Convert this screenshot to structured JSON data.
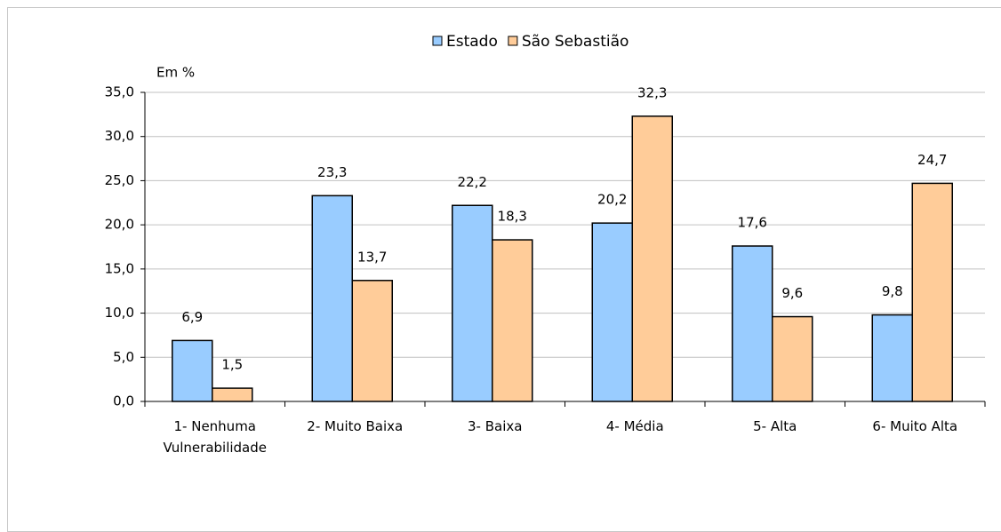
{
  "chart_data": {
    "type": "bar",
    "y_label": "Em %",
    "categories": [
      "1- Nenhuma Vulnerabilidade",
      "2- Muito Baixa",
      "3- Baixa",
      "4- Média",
      "5- Alta",
      "6- Muito Alta"
    ],
    "series": [
      {
        "name": "Estado",
        "color": "#99ccff",
        "values": [
          6.9,
          23.3,
          22.2,
          20.2,
          17.6,
          9.8
        ],
        "value_labels": [
          "6,9",
          "23,3",
          "22,2",
          "20,2",
          "17,6",
          "9,8"
        ]
      },
      {
        "name": "São Sebastião",
        "color": "#ffcc99",
        "values": [
          1.5,
          13.7,
          18.3,
          32.3,
          9.6,
          24.7
        ],
        "value_labels": [
          "1,5",
          "13,7",
          "18,3",
          "32,3",
          "9,6",
          "24,7"
        ]
      }
    ],
    "ylim": [
      0,
      35
    ],
    "yticks": [
      {
        "value": 0,
        "label": "0,0"
      },
      {
        "value": 5,
        "label": "5,0"
      },
      {
        "value": 10,
        "label": "10,0"
      },
      {
        "value": 15,
        "label": "15,0"
      },
      {
        "value": 20,
        "label": "20,0"
      },
      {
        "value": 25,
        "label": "25,0"
      },
      {
        "value": 30,
        "label": "30,0"
      },
      {
        "value": 35,
        "label": "35,0"
      }
    ],
    "grid": true,
    "legend": "top"
  }
}
